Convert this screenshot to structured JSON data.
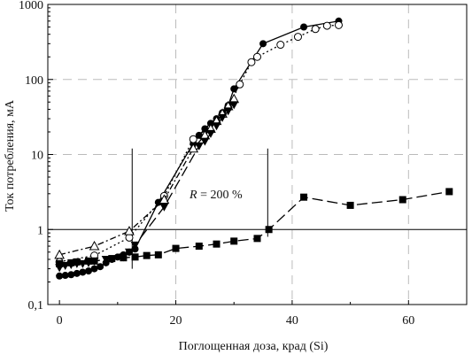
{
  "chart_data": {
    "type": "line",
    "xlabel": "Поглощенная доза, крад (Si)",
    "ylabel": "Ток потребления, мА",
    "xlim": [
      -2,
      70
    ],
    "ylim": [
      0.1,
      1000
    ],
    "y_scale": "log",
    "x_ticks": [
      0,
      20,
      40,
      60
    ],
    "x_tick_labels": [
      "0",
      "20",
      "40",
      "60"
    ],
    "y_ticks": [
      0.1,
      1,
      10,
      100,
      1000
    ],
    "y_tick_labels": [
      "0,1",
      "1",
      "10",
      "100",
      "1000"
    ],
    "grid": "dashed, major ticks",
    "annotation": {
      "text_italic": "R",
      "text_rest": " = 200 %"
    },
    "reference_line_y": 1,
    "series": [
      {
        "marker": "filled-circle",
        "line": "solid",
        "points": [
          [
            0,
            0.24
          ],
          [
            1,
            0.245
          ],
          [
            2,
            0.25
          ],
          [
            3,
            0.26
          ],
          [
            4,
            0.27
          ],
          [
            5,
            0.28
          ],
          [
            6,
            0.3
          ],
          [
            7,
            0.32
          ],
          [
            8,
            0.36
          ],
          [
            9,
            0.4
          ],
          [
            10,
            0.43
          ],
          [
            11,
            0.46
          ],
          [
            12,
            0.5
          ],
          [
            13,
            0.55
          ],
          [
            17,
            2.3
          ],
          [
            23,
            14
          ],
          [
            24,
            18
          ],
          [
            25,
            22
          ],
          [
            26,
            26
          ],
          [
            27,
            30
          ],
          [
            28,
            36
          ],
          [
            29,
            45
          ],
          [
            30,
            75
          ],
          [
            35,
            300
          ],
          [
            42,
            500
          ],
          [
            48,
            600
          ]
        ]
      },
      {
        "marker": "open-circle",
        "line": "dotted",
        "points": [
          [
            0,
            0.37
          ],
          [
            6,
            0.45
          ],
          [
            12,
            0.78
          ],
          [
            18,
            2.8
          ],
          [
            23,
            16
          ],
          [
            27,
            27
          ],
          [
            28,
            34
          ],
          [
            29,
            42
          ],
          [
            31,
            86
          ],
          [
            33,
            170
          ],
          [
            34,
            200
          ],
          [
            38,
            290
          ],
          [
            41,
            370
          ],
          [
            44,
            470
          ],
          [
            46,
            520
          ],
          [
            48,
            530
          ]
        ]
      },
      {
        "marker": "open-triangle",
        "line": "dash-dot",
        "points": [
          [
            0,
            0.46
          ],
          [
            6,
            0.6
          ],
          [
            12,
            0.95
          ],
          [
            18,
            2.5
          ],
          [
            23,
            12
          ],
          [
            25,
            18
          ],
          [
            26,
            22
          ],
          [
            27,
            28
          ],
          [
            28,
            35
          ],
          [
            29,
            44
          ],
          [
            30,
            55
          ]
        ]
      },
      {
        "marker": "filled-triangle-down",
        "line": "long-dash",
        "points": [
          [
            0,
            0.31
          ],
          [
            1,
            0.33
          ],
          [
            2,
            0.34
          ],
          [
            3,
            0.35
          ],
          [
            4,
            0.35
          ],
          [
            5,
            0.36
          ],
          [
            6,
            0.38
          ],
          [
            8,
            0.4
          ],
          [
            11,
            0.43
          ],
          [
            12,
            0.5
          ],
          [
            13,
            0.62
          ],
          [
            18,
            2.0
          ],
          [
            24,
            13
          ],
          [
            25,
            15
          ],
          [
            26,
            19
          ],
          [
            27,
            24
          ],
          [
            28,
            31
          ],
          [
            29,
            38
          ],
          [
            30,
            46
          ]
        ]
      },
      {
        "marker": "filled-square",
        "line": "long-dash",
        "points": [
          [
            0,
            0.35
          ],
          [
            2,
            0.36
          ],
          [
            3,
            0.37
          ],
          [
            5,
            0.38
          ],
          [
            6,
            0.38
          ],
          [
            9,
            0.41
          ],
          [
            11,
            0.42
          ],
          [
            13,
            0.43
          ],
          [
            15,
            0.45
          ],
          [
            17,
            0.46
          ],
          [
            20,
            0.56
          ],
          [
            24,
            0.6
          ],
          [
            27,
            0.64
          ],
          [
            30,
            0.7
          ],
          [
            34,
            0.76
          ],
          [
            36,
            1.0
          ],
          [
            42,
            2.7
          ],
          [
            50,
            2.1
          ],
          [
            59,
            2.5
          ],
          [
            67,
            3.2
          ]
        ]
      }
    ]
  }
}
